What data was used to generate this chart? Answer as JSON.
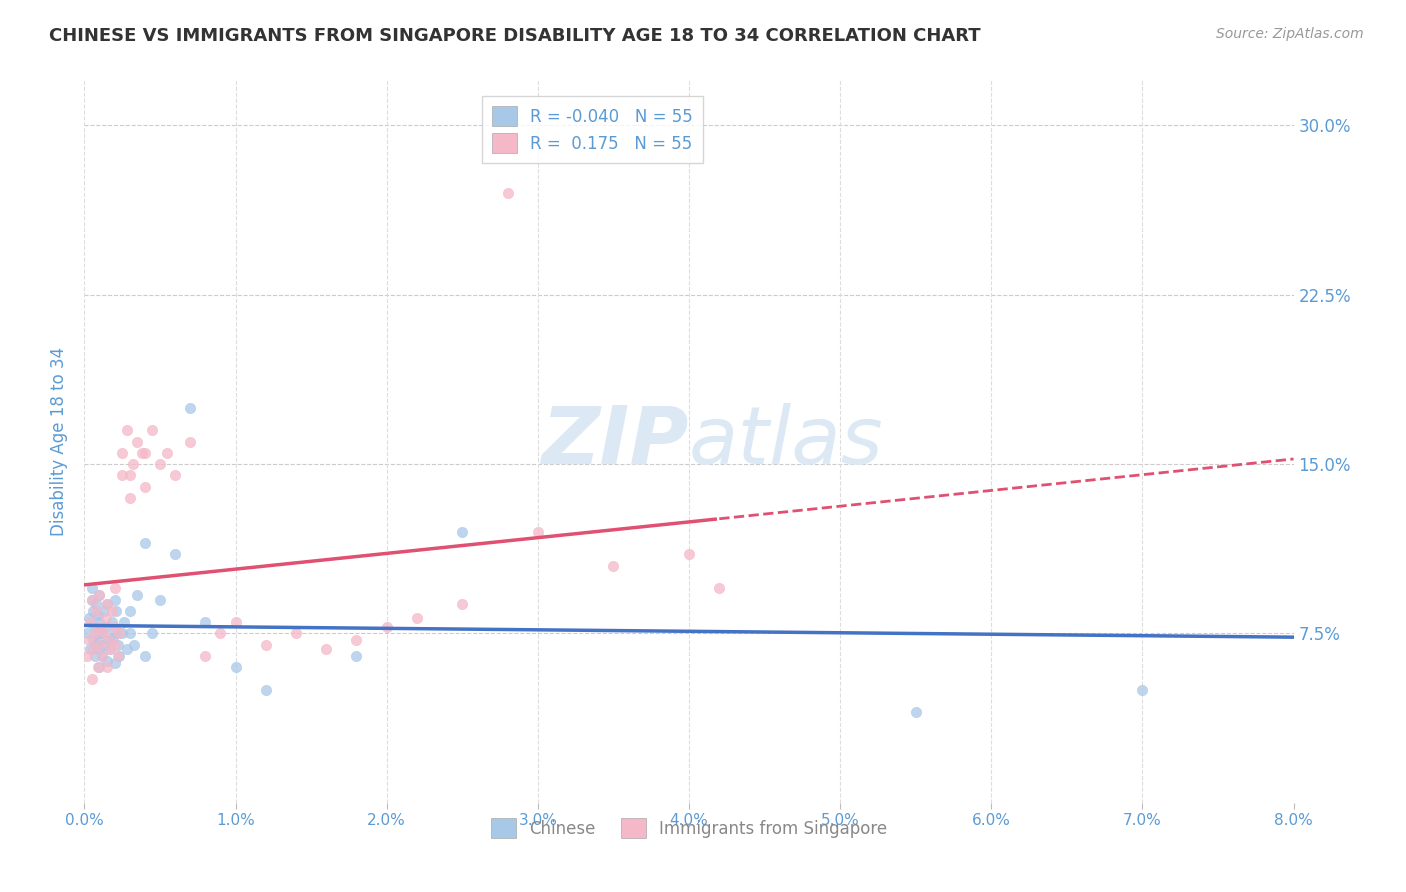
{
  "title": "CHINESE VS IMMIGRANTS FROM SINGAPORE DISABILITY AGE 18 TO 34 CORRELATION CHART",
  "source_text": "Source: ZipAtlas.com",
  "ylabel": "Disability Age 18 to 34",
  "xlim": [
    0.0,
    0.08
  ],
  "ylim": [
    0.0,
    0.32
  ],
  "xticks": [
    0.0,
    0.01,
    0.02,
    0.03,
    0.04,
    0.05,
    0.06,
    0.07,
    0.08
  ],
  "xticklabels": [
    "0.0%",
    "1.0%",
    "2.0%",
    "3.0%",
    "4.0%",
    "5.0%",
    "6.0%",
    "7.0%",
    "8.0%"
  ],
  "yticks": [
    0.075,
    0.15,
    0.225,
    0.3
  ],
  "yticklabels": [
    "7.5%",
    "15.0%",
    "22.5%",
    "30.0%"
  ],
  "R_chinese": -0.04,
  "R_singapore": 0.175,
  "N_chinese": 55,
  "N_singapore": 55,
  "blue_dot_color": "#a8c8e8",
  "pink_dot_color": "#f4b8c8",
  "blue_line_color": "#4472c4",
  "pink_line_color": "#e05070",
  "tick_label_color": "#5b9bd5",
  "watermark_color": "#dce9f5",
  "background_color": "#ffffff",
  "chinese_x": [
    0.0002,
    0.0003,
    0.0004,
    0.0005,
    0.0005,
    0.0006,
    0.0006,
    0.0007,
    0.0007,
    0.0008,
    0.0008,
    0.0009,
    0.0009,
    0.001,
    0.001,
    0.001,
    0.001,
    0.001,
    0.0012,
    0.0012,
    0.0013,
    0.0013,
    0.0014,
    0.0015,
    0.0015,
    0.0016,
    0.0017,
    0.0018,
    0.0019,
    0.002,
    0.002,
    0.002,
    0.0021,
    0.0022,
    0.0023,
    0.0025,
    0.0026,
    0.0028,
    0.003,
    0.003,
    0.0033,
    0.0035,
    0.004,
    0.004,
    0.0045,
    0.005,
    0.006,
    0.007,
    0.008,
    0.01,
    0.012,
    0.018,
    0.025,
    0.055,
    0.07
  ],
  "chinese_y": [
    0.075,
    0.082,
    0.068,
    0.09,
    0.095,
    0.072,
    0.085,
    0.065,
    0.078,
    0.07,
    0.088,
    0.075,
    0.083,
    0.06,
    0.068,
    0.072,
    0.08,
    0.092,
    0.065,
    0.075,
    0.085,
    0.07,
    0.078,
    0.063,
    0.088,
    0.072,
    0.068,
    0.08,
    0.073,
    0.09,
    0.075,
    0.062,
    0.085,
    0.07,
    0.065,
    0.075,
    0.08,
    0.068,
    0.085,
    0.075,
    0.07,
    0.092,
    0.115,
    0.065,
    0.075,
    0.09,
    0.11,
    0.175,
    0.08,
    0.06,
    0.05,
    0.065,
    0.12,
    0.04,
    0.05
  ],
  "singapore_x": [
    0.0002,
    0.0003,
    0.0004,
    0.0005,
    0.0005,
    0.0006,
    0.0007,
    0.0008,
    0.0009,
    0.001,
    0.001,
    0.001,
    0.0012,
    0.0013,
    0.0014,
    0.0015,
    0.0015,
    0.0016,
    0.0017,
    0.0018,
    0.002,
    0.002,
    0.002,
    0.0022,
    0.0023,
    0.0025,
    0.0025,
    0.0028,
    0.003,
    0.003,
    0.0032,
    0.0035,
    0.0038,
    0.004,
    0.004,
    0.0045,
    0.005,
    0.0055,
    0.006,
    0.007,
    0.008,
    0.009,
    0.01,
    0.012,
    0.014,
    0.016,
    0.018,
    0.02,
    0.022,
    0.025,
    0.028,
    0.03,
    0.035,
    0.04,
    0.042
  ],
  "singapore_y": [
    0.065,
    0.072,
    0.08,
    0.055,
    0.09,
    0.068,
    0.075,
    0.085,
    0.06,
    0.07,
    0.078,
    0.092,
    0.065,
    0.075,
    0.082,
    0.06,
    0.088,
    0.072,
    0.068,
    0.085,
    0.07,
    0.078,
    0.095,
    0.065,
    0.075,
    0.145,
    0.155,
    0.165,
    0.135,
    0.145,
    0.15,
    0.16,
    0.155,
    0.14,
    0.155,
    0.165,
    0.15,
    0.155,
    0.145,
    0.16,
    0.065,
    0.075,
    0.08,
    0.07,
    0.075,
    0.068,
    0.072,
    0.078,
    0.082,
    0.088,
    0.27,
    0.12,
    0.105,
    0.11,
    0.095
  ]
}
